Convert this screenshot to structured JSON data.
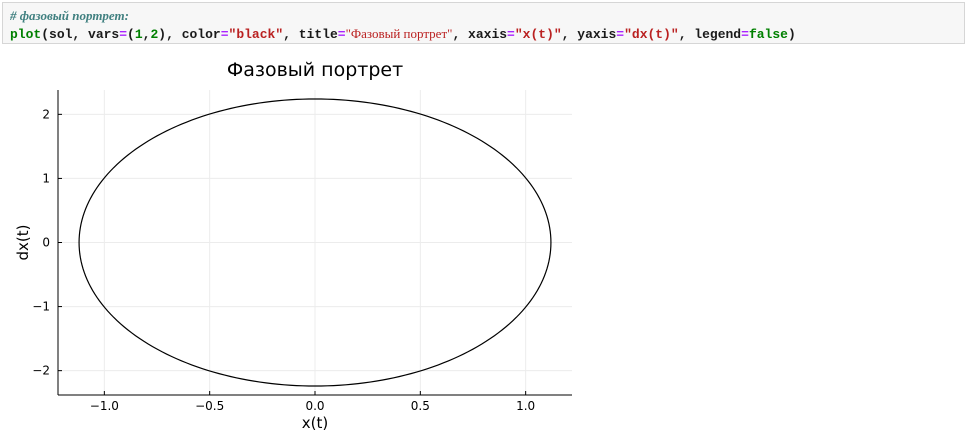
{
  "code_cell": {
    "comment": "# фазовый портрет:",
    "tokens": [
      {
        "cls": "fn",
        "text": "plot"
      },
      {
        "cls": "",
        "text": "(sol, vars"
      },
      {
        "cls": "op",
        "text": "="
      },
      {
        "cls": "",
        "text": "("
      },
      {
        "cls": "num",
        "text": "1"
      },
      {
        "cls": "",
        "text": ","
      },
      {
        "cls": "num",
        "text": "2"
      },
      {
        "cls": "",
        "text": "), color"
      },
      {
        "cls": "op",
        "text": "="
      },
      {
        "cls": "str",
        "text": "\"black\""
      },
      {
        "cls": "",
        "text": ", title"
      },
      {
        "cls": "op",
        "text": "="
      },
      {
        "cls": "str str-serif",
        "text": "\"Фазовый портрет\""
      },
      {
        "cls": "",
        "text": ", xaxis"
      },
      {
        "cls": "op",
        "text": "="
      },
      {
        "cls": "str",
        "text": "\"x(t)\""
      },
      {
        "cls": "",
        "text": ", yaxis"
      },
      {
        "cls": "op",
        "text": "="
      },
      {
        "cls": "str",
        "text": "\"dx(t)\""
      },
      {
        "cls": "",
        "text": ", legend"
      },
      {
        "cls": "op",
        "text": "="
      },
      {
        "cls": "kw",
        "text": "false"
      },
      {
        "cls": "",
        "text": ")"
      }
    ]
  },
  "chart_data": {
    "type": "line",
    "title": "Фазовый портрет",
    "xlabel": "x(t)",
    "ylabel": "dx(t)",
    "xlim": [
      -1.22,
      1.22
    ],
    "ylim": [
      -2.38,
      2.38
    ],
    "xticks": [
      -1.0,
      -0.5,
      0.0,
      0.5,
      1.0
    ],
    "xtick_labels": [
      "−1.0",
      "−0.5",
      "0.0",
      "0.5",
      "1.0"
    ],
    "yticks": [
      -2,
      -1,
      0,
      1,
      2
    ],
    "ytick_labels": [
      "−2",
      "−1",
      "0",
      "1",
      "2"
    ],
    "grid": true,
    "legend": false,
    "line_color": "#000000",
    "series": [
      {
        "curve": "ellipse (closed phase trajectory)",
        "center": [
          0,
          0
        ],
        "x_amplitude": 1.12,
        "y_amplitude": 2.24
      }
    ]
  }
}
